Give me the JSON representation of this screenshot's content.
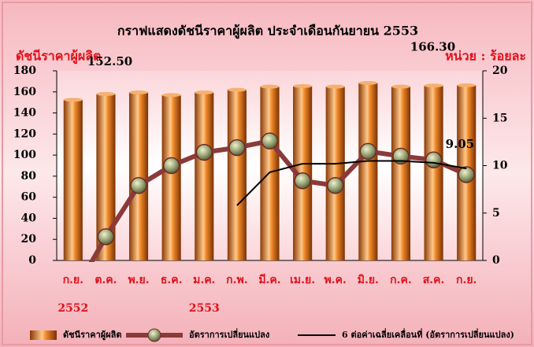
{
  "chart_data": {
    "type": "bar-line-combo",
    "title": "กราฟแสดงดัชนีราคาผู้ผลิต  ประจำเดือนกันยายน  2553",
    "y_label": "ดัชนีราคาผู้ผลิต",
    "y2_label": "หน่วย : ร้อยละ",
    "categories": [
      "ก.ย.",
      "ต.ค.",
      "พ.ย.",
      "ธ.ค.",
      "ม.ค.",
      "ก.พ.",
      "มี.ค.",
      "เม.ย.",
      "พ.ค.",
      "มิ.ย.",
      "ก.ค.",
      "ส.ค.",
      "ก.ย."
    ],
    "year_labels": [
      "2552",
      null,
      null,
      null,
      "2553",
      null,
      null,
      null,
      null,
      null,
      null,
      null,
      null
    ],
    "ylim": [
      0,
      180
    ],
    "yticks": [
      0,
      20,
      40,
      60,
      80,
      100,
      120,
      140,
      160,
      180
    ],
    "y2lim": [
      0,
      20
    ],
    "y2ticks": [
      0,
      5,
      10,
      15,
      20
    ],
    "series": [
      {
        "name": "ดัชนีราคาผู้ผลิต",
        "type": "bar",
        "color": "#e0761e",
        "values": [
          152.5,
          158,
          159.5,
          157,
          159.5,
          162,
          165,
          165.5,
          165,
          168.5,
          165,
          166,
          166.3
        ],
        "value_labels": [
          "152.50",
          null,
          null,
          null,
          null,
          null,
          null,
          null,
          null,
          null,
          null,
          null,
          "166.30"
        ]
      },
      {
        "name": "อัตราการเปลี่ยนแปลง",
        "type": "line",
        "axis": "y2",
        "color": "#8b3a3a",
        "marker": true,
        "values": [
          -3.6,
          2.5,
          7.9,
          10.0,
          11.4,
          11.9,
          12.6,
          8.4,
          7.9,
          11.5,
          11.0,
          10.6,
          9.05
        ],
        "value_labels": [
          null,
          null,
          null,
          null,
          null,
          null,
          null,
          null,
          null,
          null,
          null,
          null,
          "9.05"
        ]
      },
      {
        "name": "6 ต่อค่าเฉลี่ยเคลื่อนที่ (อัตราการเปลี่ยนแปลง)",
        "type": "line",
        "axis": "y2",
        "color": "#000000",
        "marker": false,
        "values": [
          null,
          null,
          null,
          null,
          null,
          5.8,
          9.3,
          10.2,
          10.2,
          10.5,
          10.5,
          10.3,
          9.7
        ]
      }
    ]
  }
}
